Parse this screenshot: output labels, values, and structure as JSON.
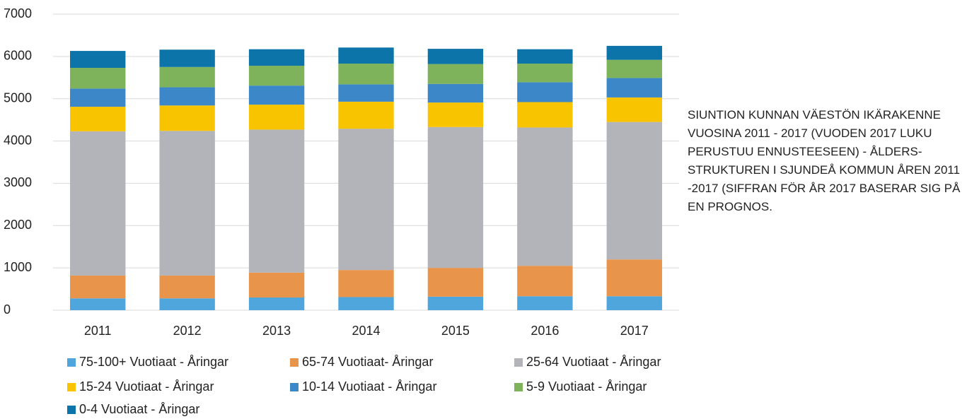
{
  "chart_data": {
    "type": "stacked_bar",
    "title": "SIUNTION KUNNAN VÄESTÖN IKÄRAKENNE VUOSINA 2011 - 2017 (VUODEN 2017 LUKU PERUSTUU ENNUSTEESEEN) - ÅLDERS-STRUKTUREN I SJUNDEÅ KOMMUN ÅREN 2011 -2017 (SIFFRAN FÖR ÅR 2017 BASERAR SIG PÅ EN PROGNOS.",
    "categories": [
      "2011",
      "2012",
      "2013",
      "2014",
      "2015",
      "2016",
      "2017"
    ],
    "series": [
      {
        "name": "75-100+ Vuotiaat - Åringar",
        "color": "#4ea6dc",
        "values": [
          280,
          280,
          300,
          310,
          320,
          330,
          330
        ]
      },
      {
        "name": "65-74 Vuotiaat- Åringar",
        "color": "#e8954b",
        "values": [
          540,
          540,
          590,
          640,
          680,
          720,
          870
        ]
      },
      {
        "name": "25-64 Vuotiaat - Åringar",
        "color": "#b3b4ba",
        "values": [
          3410,
          3420,
          3380,
          3340,
          3330,
          3270,
          3250
        ]
      },
      {
        "name": "15-24 Vuotiaat - Åringar",
        "color": "#f8c400",
        "values": [
          580,
          600,
          590,
          640,
          580,
          600,
          580
        ]
      },
      {
        "name": "10-14 Vuotiaat - Åringar",
        "color": "#3c87c8",
        "values": [
          430,
          430,
          450,
          410,
          440,
          470,
          460
        ]
      },
      {
        "name": "5-9 Vuotiaat - Åringar",
        "color": "#7eb25b",
        "values": [
          490,
          480,
          470,
          490,
          470,
          440,
          430
        ]
      },
      {
        "name": "0-4 Vuotiaat - Åringar",
        "color": "#0c74a8",
        "values": [
          400,
          410,
          390,
          380,
          360,
          340,
          330
        ]
      }
    ],
    "ylim": [
      0,
      7000
    ],
    "yticks": [
      0,
      1000,
      2000,
      3000,
      4000,
      5000,
      6000,
      7000
    ],
    "grid": true
  }
}
